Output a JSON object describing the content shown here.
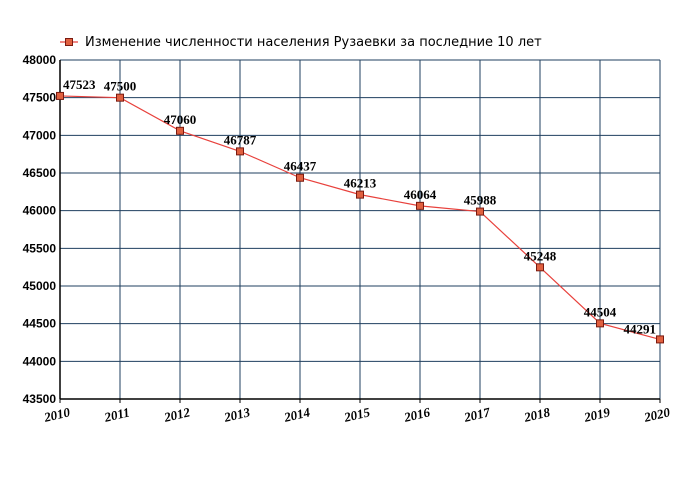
{
  "chart_data": {
    "type": "line",
    "title": "Изменение численности населения Рузаевки за последние 10 лет",
    "x": [
      "2010",
      "2011",
      "2012",
      "2013",
      "2014",
      "2015",
      "2016",
      "2017",
      "2018",
      "2019",
      "2020"
    ],
    "series": [
      {
        "name": "Изменение численности населения Рузаевки за последние 10 лет",
        "values": [
          47523,
          47500,
          47060,
          46787,
          46437,
          46213,
          46064,
          45988,
          45248,
          44504,
          44291
        ]
      }
    ],
    "data_labels": [
      "47523",
      "47500",
      "47060",
      "46787",
      "46437",
      "46213",
      "46064",
      "45988",
      "45248",
      "44504",
      "44291"
    ],
    "yticks": [
      43500,
      44000,
      44500,
      45000,
      45500,
      46000,
      46500,
      47000,
      47500,
      48000
    ],
    "ytick_labels": [
      "43500",
      "44000",
      "44500",
      "45000",
      "45500",
      "46000",
      "46500",
      "47000",
      "47500",
      "48000"
    ],
    "ylim": [
      43500,
      48000
    ],
    "xlabel": "",
    "ylabel": "",
    "grid": true,
    "legend_position": "top",
    "colors": {
      "line": "#e8413c",
      "marker_fill": "#e0603f",
      "marker_stroke": "#7a1a10",
      "grid": "#1f3f5f",
      "axis": "#000000"
    }
  }
}
